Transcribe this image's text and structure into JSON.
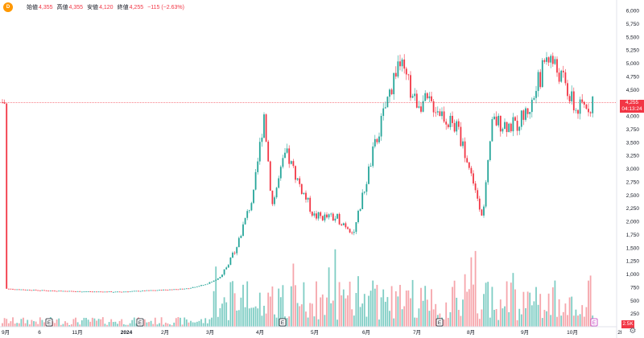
{
  "legend": {
    "badge": "D",
    "open_label": "始値",
    "open_value": "4,355",
    "high_label": "高値",
    "high_value": "4,355",
    "low_label": "安値",
    "low_value": "4,120",
    "close_label": "終値",
    "close_value": "4,255",
    "change_text": "−115 (−2.63%)"
  },
  "price_tag": {
    "price": "4,255",
    "countdown": "04:13:24"
  },
  "volume_tag": "2.5K",
  "earnings_marker_label": "E",
  "colors": {
    "up": "#26a69a",
    "down": "#f23645",
    "up_volume": "#7fcdc4",
    "down_volume": "#f6a5ab",
    "last_price_line": "#f23645",
    "earnings_highlight": "#c038c0"
  },
  "chart_data": {
    "type": "candlestick",
    "ylim": [
      0,
      6000
    ],
    "yticks": [
      "6,000",
      "5,750",
      "5,500",
      "5,250",
      "5,000",
      "4,750",
      "4,500",
      "4,250",
      "4,000",
      "3,750",
      "3,500",
      "3,250",
      "3,000",
      "2,750",
      "2,500",
      "2,250",
      "2,000",
      "1,750",
      "1,500",
      "1,250",
      "1,000",
      "750",
      "500",
      "250"
    ],
    "xticks": [
      "9月",
      "6",
      "11月",
      "2024",
      "2月",
      "3月",
      "4月",
      "5月",
      "6月",
      "7月",
      "8月",
      "9月",
      "10月",
      "2I"
    ],
    "last_price": 4255,
    "approx_close_path": [
      {
        "date": "2023-09",
        "close": 720
      },
      {
        "date": "2023-10",
        "close": 690
      },
      {
        "date": "2023-11",
        "close": 670
      },
      {
        "date": "2023-12",
        "close": 660
      },
      {
        "date": "2024-01",
        "close": 690
      },
      {
        "date": "2024-02",
        "close": 720
      },
      {
        "date": "2024-02-end",
        "close": 800
      },
      {
        "date": "2024-03-early",
        "close": 950
      },
      {
        "date": "2024-03-mid",
        "close": 1500
      },
      {
        "date": "2024-03-end",
        "close": 2500
      },
      {
        "date": "2024-04-early",
        "close": 4050
      },
      {
        "date": "2024-04-mid",
        "close": 2300
      },
      {
        "date": "2024-04-end",
        "close": 3300
      },
      {
        "date": "2024-05-early",
        "close": 2700
      },
      {
        "date": "2024-05-mid",
        "close": 2100
      },
      {
        "date": "2024-05-end",
        "close": 2050
      },
      {
        "date": "2024-06-early",
        "close": 1800
      },
      {
        "date": "2024-06-mid",
        "close": 3400
      },
      {
        "date": "2024-06-end",
        "close": 5050
      },
      {
        "date": "2024-07-early",
        "close": 4300
      },
      {
        "date": "2024-07-mid",
        "close": 4200
      },
      {
        "date": "2024-07-end",
        "close": 3700
      },
      {
        "date": "2024-08-early",
        "close": 2100
      },
      {
        "date": "2024-08-mid",
        "close": 3900
      },
      {
        "date": "2024-08-end",
        "close": 3800
      },
      {
        "date": "2024-09-early",
        "close": 4200
      },
      {
        "date": "2024-09-mid",
        "close": 5200
      },
      {
        "date": "2024-09-end",
        "close": 4650
      },
      {
        "date": "2024-10-early",
        "close": 4100
      },
      {
        "date": "2024-10-mid",
        "close": 4255
      }
    ]
  }
}
